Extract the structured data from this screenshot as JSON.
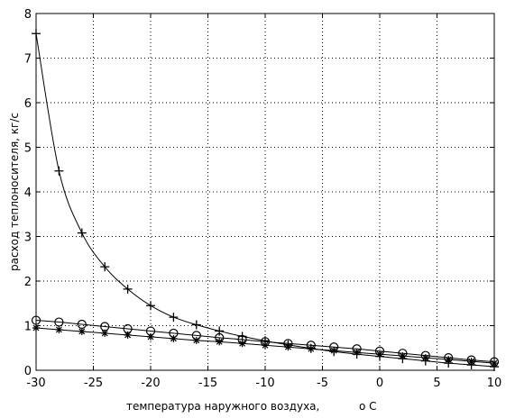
{
  "chart_data": {
    "type": "line",
    "xlabel": "температура наружного воздуха,",
    "xlabel_unit": "o C",
    "ylabel": "расход теплоносителя, кг/с",
    "xlim": [
      -30,
      10
    ],
    "ylim": [
      0,
      8
    ],
    "grid": true,
    "x_ticks": [
      -30,
      -25,
      -20,
      -15,
      -10,
      -5,
      0,
      5,
      10
    ],
    "y_ticks": [
      0,
      1,
      2,
      3,
      4,
      5,
      6,
      7,
      8
    ],
    "series": [
      {
        "marker": "plus",
        "x": [
          -30,
          -28,
          -26,
          -24,
          -22,
          -20,
          -18,
          -16,
          -14,
          -12,
          -10,
          -8,
          -6,
          -4,
          -2,
          0,
          2,
          4,
          6,
          8,
          10
        ],
        "y": [
          7.55,
          4.47,
          3.08,
          2.32,
          1.82,
          1.45,
          1.19,
          1.02,
          0.88,
          0.76,
          0.66,
          0.57,
          0.49,
          0.42,
          0.36,
          0.31,
          0.26,
          0.21,
          0.16,
          0.12,
          0.08
        ]
      },
      {
        "marker": "circle",
        "x": [
          -30,
          -28,
          -26,
          -24,
          -22,
          -20,
          -18,
          -16,
          -14,
          -12,
          -10,
          -8,
          -6,
          -4,
          -2,
          0,
          2,
          4,
          6,
          8,
          10
        ],
        "y": [
          1.12,
          1.08,
          1.03,
          0.98,
          0.93,
          0.88,
          0.83,
          0.78,
          0.73,
          0.69,
          0.64,
          0.6,
          0.56,
          0.52,
          0.48,
          0.43,
          0.38,
          0.33,
          0.28,
          0.23,
          0.19
        ]
      },
      {
        "marker": "star",
        "x": [
          -30,
          -28,
          -26,
          -24,
          -22,
          -20,
          -18,
          -16,
          -14,
          -12,
          -10,
          -8,
          -6,
          -4,
          -2,
          0,
          2,
          4,
          6,
          8,
          10
        ],
        "y": [
          0.95,
          0.91,
          0.87,
          0.83,
          0.79,
          0.75,
          0.71,
          0.67,
          0.64,
          0.6,
          0.56,
          0.52,
          0.48,
          0.44,
          0.4,
          0.36,
          0.32,
          0.28,
          0.24,
          0.2,
          0.16
        ]
      }
    ]
  }
}
